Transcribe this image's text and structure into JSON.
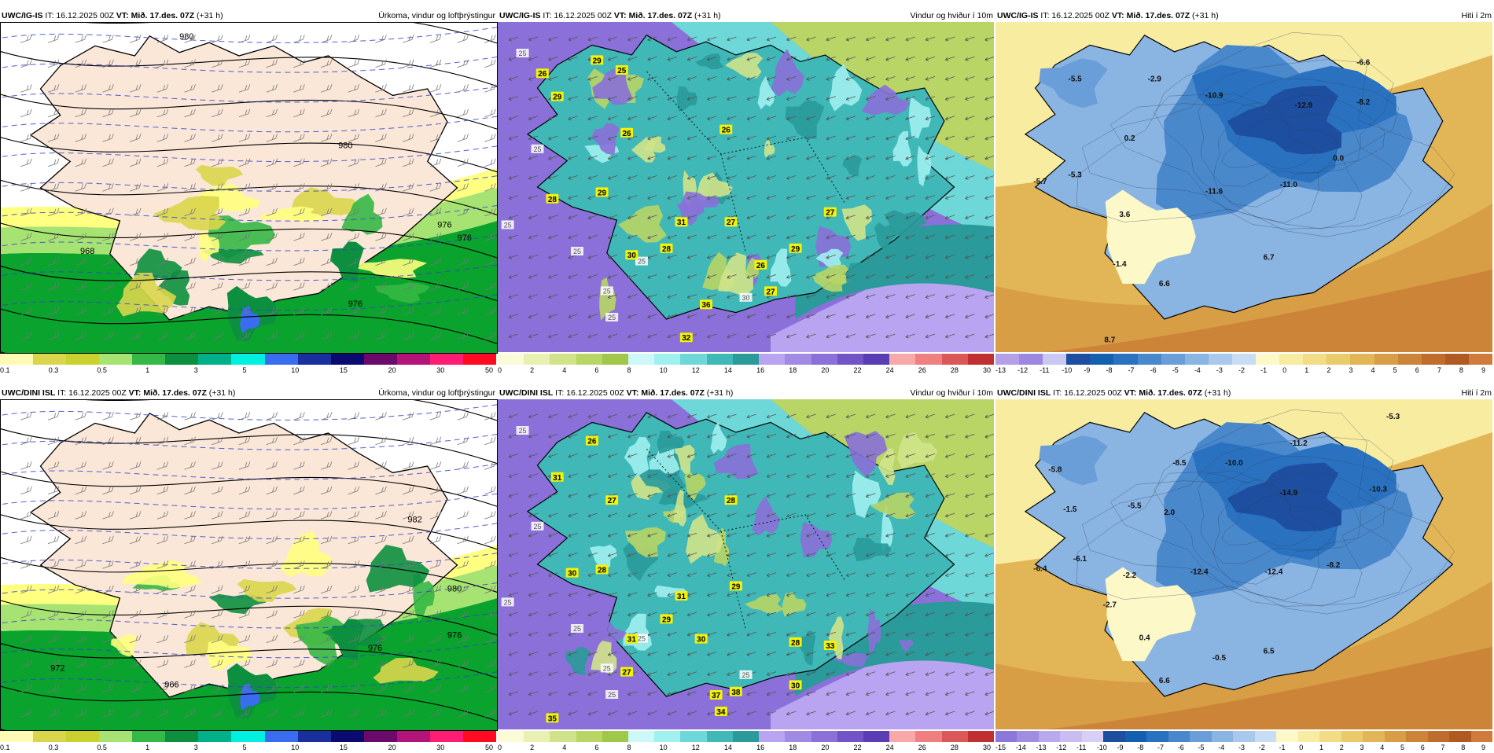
{
  "rows": [
    {
      "panels": [
        {
          "kind": "precip",
          "header_model": "UWC/IG-IS",
          "header_it": " IT: 16.12.2025 00Z ",
          "header_vt": "VT: Mið. 17.des. 07Z",
          "header_lead": " (+31 h)",
          "title": "Úrkoma, vindur og loftþrýstingur",
          "pressure_labels": [
            "980",
            "980",
            "976",
            "976",
            "968",
            "976"
          ],
          "colorbar": {
            "colors": [
              "#fffbb5",
              "#d9d64c",
              "#c8d12d",
              "#a6e372",
              "#35b845",
              "#0c8f3e",
              "#00b089",
              "#00f0e0",
              "#3a6cf0",
              "#1a2f9e",
              "#0a0a70",
              "#6c0a6c",
              "#b41478",
              "#ff1c74",
              "#ff0a20"
            ],
            "ticks": [
              "0.1",
              "0.3",
              "0.5",
              "1",
              "3",
              "5",
              "10",
              "15",
              "20",
              "30",
              "50"
            ]
          }
        },
        {
          "kind": "wind",
          "header_model": "UWC/IG-IS",
          "header_it": " IT: 16.12.2025 00Z ",
          "header_vt": "VT: Mið. 17.des. 07Z",
          "header_lead": " (+31 h)",
          "title": "Vindur og hviður í 10m",
          "gust_labels": [
            "26",
            "29",
            "25",
            "29",
            "26",
            "26",
            "28",
            "29",
            "31",
            "27",
            "30",
            "28",
            "27",
            "26",
            "29",
            "27",
            "36",
            "32"
          ],
          "white_labels": [
            "25",
            "25",
            "25",
            "25",
            "25",
            "25",
            "30",
            "25"
          ],
          "colorbar": {
            "colors": [
              "#fbfbd8",
              "#e8f0b2",
              "#d0e38a",
              "#b8d566",
              "#a0c74a",
              "#ccf8f8",
              "#a0f0f0",
              "#6ed8d8",
              "#40b8b8",
              "#2a9a9a",
              "#b8a4f0",
              "#a08ae4",
              "#8a70d8",
              "#7254c8",
              "#5a3cb4",
              "#f8a8a8",
              "#f08080",
              "#dc5858",
              "#c03030"
            ],
            "ticks": [
              "0",
              "2",
              "4",
              "6",
              "8",
              "10",
              "12",
              "14",
              "16",
              "18",
              "20",
              "22",
              "24",
              "26",
              "28",
              "30"
            ]
          }
        },
        {
          "kind": "temp",
          "header_model": "UWC/IG-IS",
          "header_it": " IT: 16.12.2025 00Z ",
          "header_vt": "VT: Mið. 17.des. 07Z",
          "header_lead": " (+31 h)",
          "title": "Hiti í 2m",
          "temp_labels": [
            "-5.5",
            "-2.9",
            "-6.6",
            "-10.9",
            "-12.9",
            "-8.2",
            "0.2",
            "-5.3",
            "-5.7",
            "-11.6",
            "-11.0",
            "0.0",
            "3.6",
            "-1.4",
            "6.7",
            "6.6",
            "8.7"
          ],
          "colorbar": {
            "colors": [
              "#b4a0e8",
              "#9c88e0",
              "#c8c8f0",
              "#1e4ea0",
              "#1460b0",
              "#2a72c0",
              "#4a88cc",
              "#6a9ed8",
              "#8ab4e2",
              "#a8c8ec",
              "#c8dcf4",
              "#fdf8c8",
              "#f8eca0",
              "#f2dc84",
              "#eacb6a",
              "#e2b656",
              "#d89e46",
              "#cc8438",
              "#c06c2c",
              "#b05a22",
              "#d07a3c"
            ],
            "ticks": [
              "-13",
              "-12",
              "-11",
              "-10",
              "-9",
              "-8",
              "-7",
              "-6",
              "-5",
              "-4",
              "-3",
              "-2",
              "-1",
              "0",
              "1",
              "2",
              "3",
              "4",
              "5",
              "6",
              "7",
              "8",
              "9"
            ]
          }
        }
      ]
    },
    {
      "panels": [
        {
          "kind": "precip",
          "header_model": "UWC/DINI ISL",
          "header_it": " IT: 16.12.2025 00Z ",
          "header_vt": "VT: Mið. 17.des. 07Z",
          "header_lead": " (+31 h)",
          "title": "Úrkoma, vindur og loftþrýstingur",
          "pressure_labels": [
            "982",
            "980",
            "976",
            "976",
            "972",
            "966"
          ],
          "colorbar": {
            "colors": [
              "#fffbb5",
              "#d9d64c",
              "#c8d12d",
              "#a6e372",
              "#35b845",
              "#0c8f3e",
              "#00b089",
              "#00f0e0",
              "#3a6cf0",
              "#1a2f9e",
              "#0a0a70",
              "#6c0a6c",
              "#b41478",
              "#ff1c74",
              "#ff0a20"
            ],
            "ticks": [
              "0.1",
              "0.3",
              "0.5",
              "1",
              "3",
              "5",
              "10",
              "15",
              "20",
              "30",
              "50"
            ]
          }
        },
        {
          "kind": "wind",
          "header_model": "UWC/DINI ISL",
          "header_it": " IT: 16.12.2025 00Z ",
          "header_vt": "VT: Mið. 17.des. 07Z",
          "header_lead": " (+31 h)",
          "title": "Vindur og hviður í 10m",
          "gust_labels": [
            "26",
            "31",
            "27",
            "28",
            "30",
            "28",
            "31",
            "29",
            "29",
            "31",
            "30",
            "27",
            "28",
            "33",
            "30",
            "37",
            "38",
            "34",
            "35"
          ],
          "white_labels": [
            "25",
            "25",
            "25",
            "25",
            "25",
            "25",
            "25",
            "25"
          ],
          "colorbar": {
            "colors": [
              "#fbfbd8",
              "#e8f0b2",
              "#d0e38a",
              "#b8d566",
              "#a0c74a",
              "#ccf8f8",
              "#a0f0f0",
              "#6ed8d8",
              "#40b8b8",
              "#2a9a9a",
              "#b8a4f0",
              "#a08ae4",
              "#8a70d8",
              "#7254c8",
              "#5a3cb4",
              "#f8a8a8",
              "#f08080",
              "#dc5858",
              "#c03030"
            ],
            "ticks": [
              "0",
              "2",
              "4",
              "6",
              "8",
              "10",
              "12",
              "14",
              "16",
              "18",
              "20",
              "22",
              "24",
              "26",
              "28",
              "30"
            ]
          }
        },
        {
          "kind": "temp",
          "header_model": "UWC/DINI ISL",
          "header_it": " IT: 16.12.2025 00Z ",
          "header_vt": "VT: Mið. 17.des. 07Z",
          "header_lead": " (+31 h)",
          "title": "Hiti í 2m",
          "temp_labels": [
            "-5.3",
            "-5.8",
            "-8.5",
            "-10.0",
            "-11.2",
            "-14.9",
            "-10.3",
            "-1.5",
            "-5.5",
            "2.0",
            "-6.4",
            "-6.1",
            "-2.2",
            "-12.4",
            "-12.4",
            "-8.2",
            "-2.7",
            "0.4",
            "-0.5",
            "6.5",
            "6.6"
          ],
          "colorbar": {
            "colors": [
              "#8c78d8",
              "#a08ce0",
              "#b8a8ec",
              "#c8bcf0",
              "#d8d0f4",
              "#1e4ea0",
              "#1460b0",
              "#2a72c0",
              "#4a88cc",
              "#6a9ed8",
              "#8ab4e2",
              "#a8c8ec",
              "#c8dcf4",
              "#fdf8c8",
              "#f8eca0",
              "#f2dc84",
              "#eacb6a",
              "#e2b656",
              "#d89e46",
              "#cc8438",
              "#c06c2c",
              "#b05a22",
              "#d07a3c"
            ],
            "ticks": [
              "-15",
              "-14",
              "-13",
              "-12",
              "-11",
              "-10",
              "-9",
              "-8",
              "-7",
              "-6",
              "-5",
              "-4",
              "-3",
              "-2",
              "-1",
              "0",
              "1",
              "2",
              "3",
              "4",
              "5",
              "6",
              "7",
              "8",
              "9"
            ]
          }
        }
      ]
    }
  ]
}
